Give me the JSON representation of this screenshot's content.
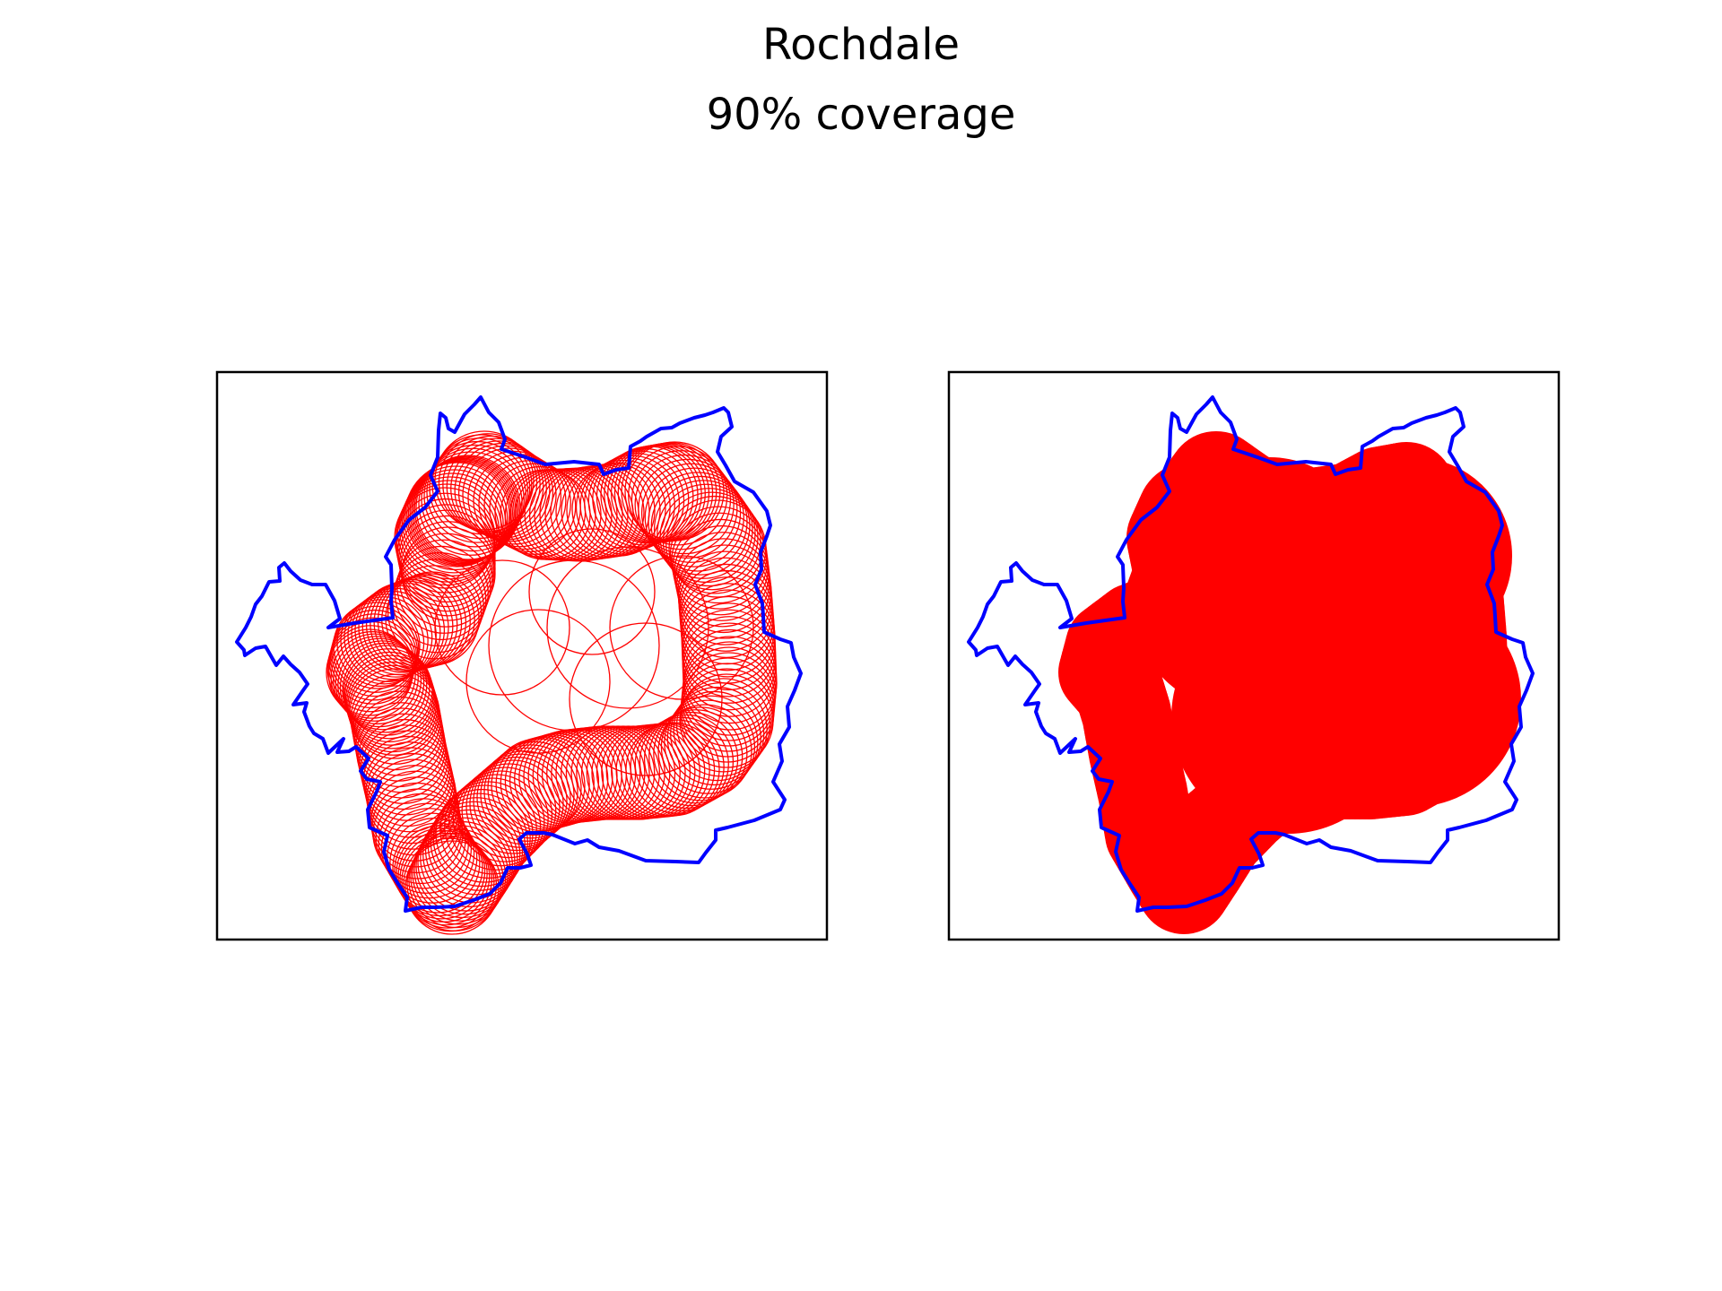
{
  "figure": {
    "title": "Rochdale",
    "subtitle": "90% coverage"
  },
  "colors": {
    "boundary": "#0000ff",
    "coverage": "#ff0000",
    "frame": "#000000",
    "background": "#ffffff"
  },
  "panels": [
    {
      "name": "coverage-circles-outline",
      "style": "outlined circles"
    },
    {
      "name": "coverage-circles-filled",
      "style": "filled circles"
    }
  ]
}
